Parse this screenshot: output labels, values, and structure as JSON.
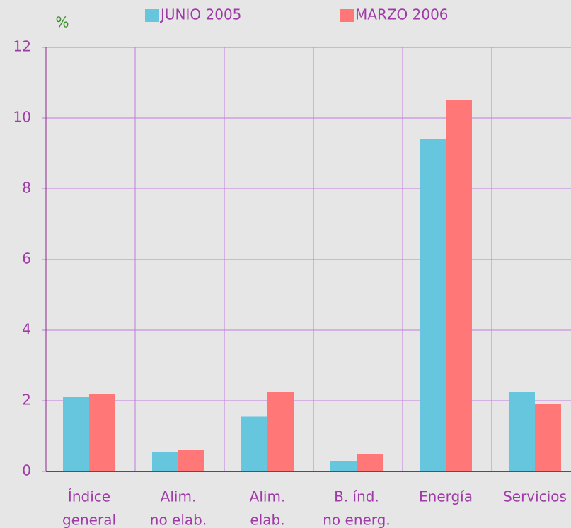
{
  "chart_data": {
    "type": "bar",
    "ylabel": "%",
    "categories": [
      [
        "Índice",
        "general"
      ],
      [
        "Alim.",
        "no elab."
      ],
      [
        "Alim.",
        "elab."
      ],
      [
        "B. índ.",
        "no energ."
      ],
      [
        "Energía"
      ],
      [
        "Servicios"
      ]
    ],
    "series": [
      {
        "name": "JUNIO 2005",
        "color": "#66c6dd",
        "values": [
          2.1,
          0.55,
          1.55,
          0.3,
          9.4,
          2.25
        ]
      },
      {
        "name": "MARZO 2006",
        "color": "#ff7777",
        "values": [
          2.2,
          0.6,
          2.25,
          0.5,
          10.5,
          1.9
        ]
      }
    ],
    "ylim": [
      0,
      12
    ],
    "yticks": [
      0,
      2,
      4,
      6,
      8,
      10,
      12
    ],
    "grid": true
  }
}
